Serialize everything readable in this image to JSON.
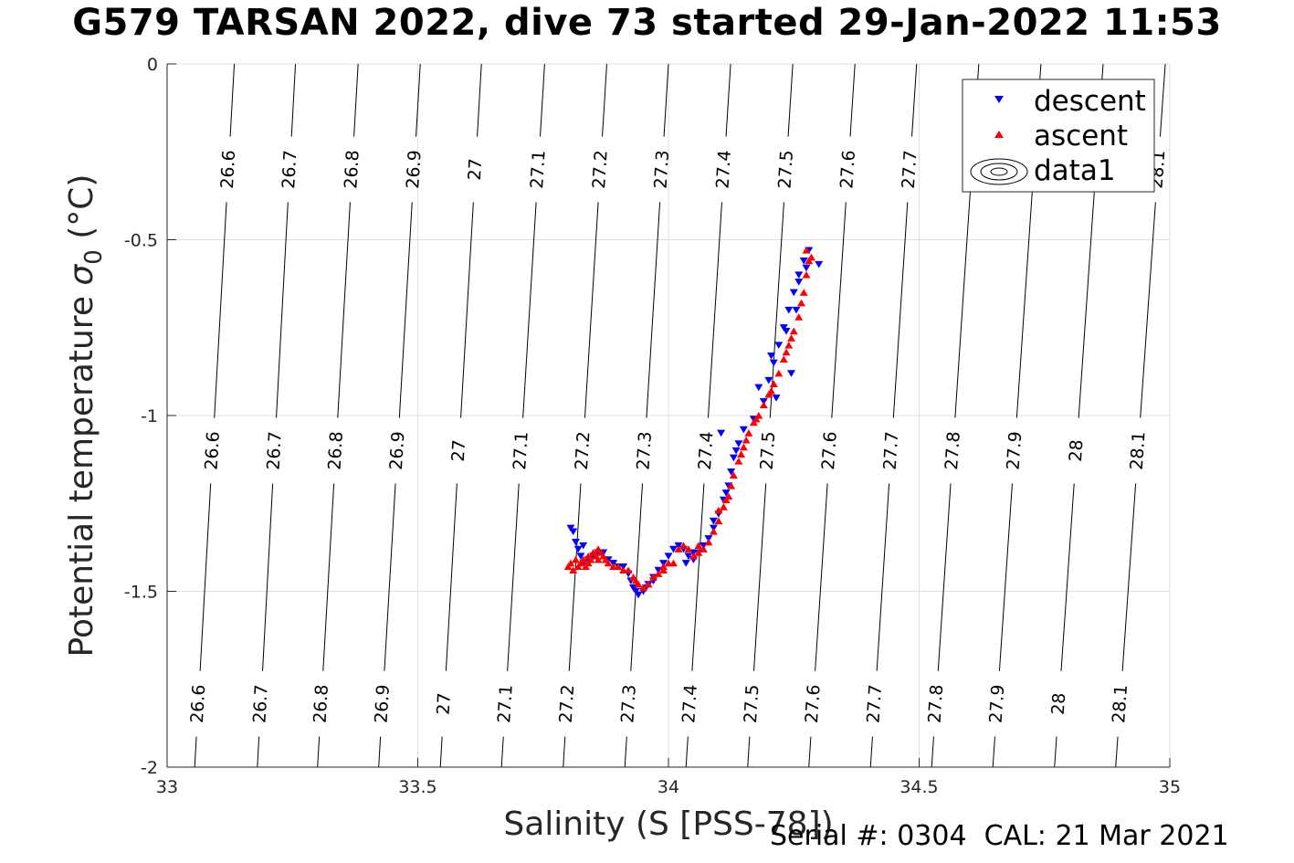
{
  "title": "G579 TARSAN 2022, dive 73 started 29-Jan-2022 11:53",
  "footer": "Serial #: 0304  CAL: 21 Mar 2021",
  "colors": {
    "descent": "#0000ff",
    "ascent": "#ff0000",
    "contour": "#000000",
    "grid": "#e0e0e0"
  },
  "chart_data": {
    "type": "scatter",
    "title": "G579 TARSAN 2022, dive 73 started 29-Jan-2022 11:53",
    "xlabel": "Salinity (S [PSS-78])",
    "ylabel": "Potential temperature σ₀ (°C)",
    "ylabel_main": "Potential temperature ",
    "ylabel_sigma": "σ",
    "ylabel_sub": "0",
    "ylabel_unit": " (°C)",
    "xlim": [
      33,
      35
    ],
    "ylim": [
      -2,
      0
    ],
    "xticks": [
      "33",
      "33.5",
      "34",
      "34.5",
      "35"
    ],
    "yticks": [
      "0",
      "-0.5",
      "-1",
      "-1.5",
      "-2"
    ],
    "grid": true,
    "legend_position": "top-right",
    "legend": [
      "descent",
      "ascent",
      "data1"
    ],
    "density_contours": {
      "levels": [
        26.6,
        26.7,
        26.8,
        26.9,
        27,
        27.1,
        27.2,
        27.3,
        27.4,
        27.5,
        27.6,
        27.7,
        27.8,
        27.9,
        28,
        28.1
      ],
      "labels": [
        "26.6",
        "26.7",
        "26.8",
        "26.9",
        "27",
        "27.1",
        "27.2",
        "27.3",
        "27.4",
        "27.5",
        "27.6",
        "27.7",
        "27.8",
        "27.9",
        "28",
        "28.1"
      ],
      "salinity_at_theta_0": [
        33.134,
        33.256,
        33.381,
        33.505,
        33.627,
        33.753,
        33.877,
        34.0,
        34.124,
        34.248,
        34.372,
        34.495,
        34.619,
        34.743,
        34.867,
        34.991
      ],
      "salinity_at_theta_minus2": [
        33.055,
        33.18,
        33.3,
        33.422,
        33.545,
        33.667,
        33.79,
        33.913,
        34.035,
        34.158,
        34.28,
        34.403,
        34.525,
        34.647,
        34.77,
        34.892
      ],
      "labels_top_row": [
        "26.6",
        "26.7",
        "26.8",
        "26.9",
        "27",
        "27.1",
        "27.2",
        "27.3",
        "27.4",
        "27.5",
        "27.6",
        "27.7",
        "",
        "",
        "",
        "28.1"
      ],
      "labels_middle_row": [
        "26.6",
        "26.7",
        "26.8",
        "26.9",
        "27",
        "27.1",
        "27.2",
        "27.3",
        "27.4",
        "27.5",
        "27.6",
        "27.7",
        "27.8",
        "27.9",
        "28",
        "28.1"
      ],
      "labels_bottom_row": [
        "26.6",
        "26.7",
        "26.8",
        "26.9",
        "27",
        "27.1",
        "27.2",
        "27.3",
        "27.4",
        "27.5",
        "27.6",
        "27.7",
        "27.8",
        "27.9",
        "28",
        "28.1"
      ]
    },
    "series": [
      {
        "name": "descent",
        "marker": "triangle-down",
        "color": "#0000ff",
        "points": [
          [
            33.81,
            -1.33
          ],
          [
            33.815,
            -1.36
          ],
          [
            33.82,
            -1.38
          ],
          [
            33.825,
            -1.4
          ],
          [
            33.83,
            -1.42
          ],
          [
            33.84,
            -1.41
          ],
          [
            33.85,
            -1.4
          ],
          [
            33.86,
            -1.39
          ],
          [
            33.87,
            -1.39
          ],
          [
            33.88,
            -1.41
          ],
          [
            33.89,
            -1.42
          ],
          [
            33.9,
            -1.43
          ],
          [
            33.91,
            -1.43
          ],
          [
            33.92,
            -1.45
          ],
          [
            33.925,
            -1.47
          ],
          [
            33.93,
            -1.49
          ],
          [
            33.935,
            -1.5
          ],
          [
            33.94,
            -1.51
          ],
          [
            33.95,
            -1.5
          ],
          [
            33.96,
            -1.48
          ],
          [
            33.97,
            -1.46
          ],
          [
            33.98,
            -1.44
          ],
          [
            33.99,
            -1.42
          ],
          [
            34.0,
            -1.4
          ],
          [
            34.01,
            -1.38
          ],
          [
            34.02,
            -1.37
          ],
          [
            34.03,
            -1.38
          ],
          [
            34.04,
            -1.4
          ],
          [
            34.05,
            -1.41
          ],
          [
            34.06,
            -1.39
          ],
          [
            34.07,
            -1.37
          ],
          [
            34.08,
            -1.35
          ],
          [
            34.09,
            -1.32
          ],
          [
            34.1,
            -1.28
          ],
          [
            34.11,
            -1.24
          ],
          [
            34.12,
            -1.2
          ],
          [
            34.125,
            -1.16
          ],
          [
            34.13,
            -1.12
          ],
          [
            34.14,
            -1.08
          ],
          [
            34.15,
            -1.04
          ],
          [
            34.17,
            -1.01
          ],
          [
            34.19,
            -0.96
          ],
          [
            34.2,
            -0.9
          ],
          [
            34.21,
            -0.85
          ],
          [
            34.22,
            -0.8
          ],
          [
            34.23,
            -0.75
          ],
          [
            34.24,
            -0.7
          ],
          [
            34.25,
            -0.65
          ],
          [
            34.26,
            -0.6
          ],
          [
            34.27,
            -0.56
          ],
          [
            34.28,
            -0.53
          ],
          [
            34.3,
            -0.57
          ],
          [
            34.215,
            -0.95
          ],
          [
            34.245,
            -0.88
          ],
          [
            34.26,
            -0.62
          ],
          [
            34.18,
            -0.92
          ],
          [
            34.105,
            -1.05
          ],
          [
            34.035,
            -1.42
          ],
          [
            33.97,
            -1.47
          ],
          [
            33.955,
            -1.49
          ],
          [
            33.83,
            -1.37
          ],
          [
            33.805,
            -1.32
          ],
          [
            34.115,
            -1.22
          ],
          [
            34.135,
            -1.1
          ],
          [
            34.205,
            -0.83
          ],
          [
            34.235,
            -0.76
          ],
          [
            34.255,
            -0.7
          ],
          [
            34.275,
            -0.58
          ],
          [
            34.09,
            -1.3
          ],
          [
            34.05,
            -1.39
          ]
        ]
      },
      {
        "name": "ascent",
        "marker": "triangle-up",
        "color": "#ff0000",
        "points": [
          [
            33.8,
            -1.43
          ],
          [
            33.805,
            -1.42
          ],
          [
            33.81,
            -1.44
          ],
          [
            33.815,
            -1.41
          ],
          [
            33.82,
            -1.43
          ],
          [
            33.825,
            -1.42
          ],
          [
            33.83,
            -1.41
          ],
          [
            33.835,
            -1.43
          ],
          [
            33.84,
            -1.4
          ],
          [
            33.845,
            -1.41
          ],
          [
            33.85,
            -1.39
          ],
          [
            33.855,
            -1.4
          ],
          [
            33.86,
            -1.38
          ],
          [
            33.865,
            -1.39
          ],
          [
            33.87,
            -1.4
          ],
          [
            33.875,
            -1.41
          ],
          [
            33.88,
            -1.42
          ],
          [
            33.89,
            -1.43
          ],
          [
            33.9,
            -1.43
          ],
          [
            33.91,
            -1.44
          ],
          [
            33.92,
            -1.44
          ],
          [
            33.93,
            -1.46
          ],
          [
            33.935,
            -1.47
          ],
          [
            33.94,
            -1.48
          ],
          [
            33.95,
            -1.49
          ],
          [
            33.96,
            -1.48
          ],
          [
            33.97,
            -1.46
          ],
          [
            33.98,
            -1.45
          ],
          [
            33.99,
            -1.43
          ],
          [
            34.0,
            -1.42
          ],
          [
            34.01,
            -1.42
          ],
          [
            34.02,
            -1.38
          ],
          [
            34.03,
            -1.37
          ],
          [
            34.04,
            -1.38
          ],
          [
            34.05,
            -1.4
          ],
          [
            34.06,
            -1.39
          ],
          [
            34.07,
            -1.38
          ],
          [
            34.08,
            -1.36
          ],
          [
            34.09,
            -1.33
          ],
          [
            34.1,
            -1.3
          ],
          [
            34.11,
            -1.26
          ],
          [
            34.12,
            -1.23
          ],
          [
            34.125,
            -1.2
          ],
          [
            34.13,
            -1.17
          ],
          [
            34.14,
            -1.13
          ],
          [
            34.15,
            -1.09
          ],
          [
            34.16,
            -1.05
          ],
          [
            34.17,
            -1.02
          ],
          [
            34.18,
            -1.0
          ],
          [
            34.19,
            -0.97
          ],
          [
            34.2,
            -0.94
          ],
          [
            34.21,
            -0.91
          ],
          [
            34.22,
            -0.88
          ],
          [
            34.23,
            -0.84
          ],
          [
            34.24,
            -0.8
          ],
          [
            34.25,
            -0.76
          ],
          [
            34.26,
            -0.72
          ],
          [
            34.265,
            -0.68
          ],
          [
            34.27,
            -0.65
          ],
          [
            34.275,
            -0.6
          ],
          [
            34.28,
            -0.56
          ],
          [
            34.275,
            -0.53
          ],
          [
            34.285,
            -0.55
          ],
          [
            34.1,
            -1.27
          ],
          [
            34.115,
            -1.24
          ],
          [
            34.145,
            -1.11
          ],
          [
            34.205,
            -0.93
          ],
          [
            34.235,
            -0.82
          ],
          [
            34.245,
            -0.78
          ],
          [
            34.06,
            -1.37
          ],
          [
            33.99,
            -1.44
          ],
          [
            33.84,
            -1.42
          ],
          [
            33.86,
            -1.41
          ],
          [
            34.175,
            -1.01
          ],
          [
            34.155,
            -1.07
          ]
        ]
      }
    ]
  }
}
